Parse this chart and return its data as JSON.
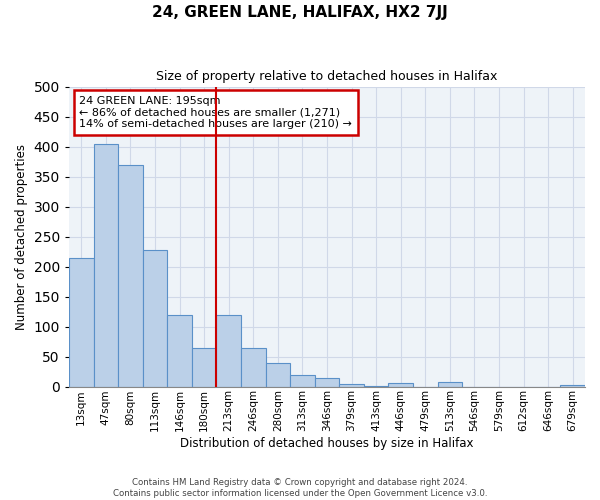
{
  "title": "24, GREEN LANE, HALIFAX, HX2 7JJ",
  "subtitle": "Size of property relative to detached houses in Halifax",
  "xlabel": "Distribution of detached houses by size in Halifax",
  "ylabel": "Number of detached properties",
  "bar_labels": [
    "13sqm",
    "47sqm",
    "80sqm",
    "113sqm",
    "146sqm",
    "180sqm",
    "213sqm",
    "246sqm",
    "280sqm",
    "313sqm",
    "346sqm",
    "379sqm",
    "413sqm",
    "446sqm",
    "479sqm",
    "513sqm",
    "546sqm",
    "579sqm",
    "612sqm",
    "646sqm",
    "679sqm"
  ],
  "bar_values": [
    215,
    405,
    370,
    228,
    120,
    65,
    120,
    65,
    40,
    20,
    14,
    5,
    1,
    6,
    0,
    8,
    0,
    0,
    0,
    0,
    2
  ],
  "bar_color": "#bbd0e8",
  "bar_edge_color": "#5a90c8",
  "vline_x": 5.5,
  "vline_color": "#cc0000",
  "ylim": [
    0,
    500
  ],
  "yticks": [
    0,
    50,
    100,
    150,
    200,
    250,
    300,
    350,
    400,
    450,
    500
  ],
  "annotation_title": "24 GREEN LANE: 195sqm",
  "annotation_line1": "← 86% of detached houses are smaller (1,271)",
  "annotation_line2": "14% of semi-detached houses are larger (210) →",
  "annotation_box_color": "#cc0000",
  "footer_line1": "Contains HM Land Registry data © Crown copyright and database right 2024.",
  "footer_line2": "Contains public sector information licensed under the Open Government Licence v3.0.",
  "bg_color": "#ffffff",
  "grid_color": "#d0d8e8"
}
